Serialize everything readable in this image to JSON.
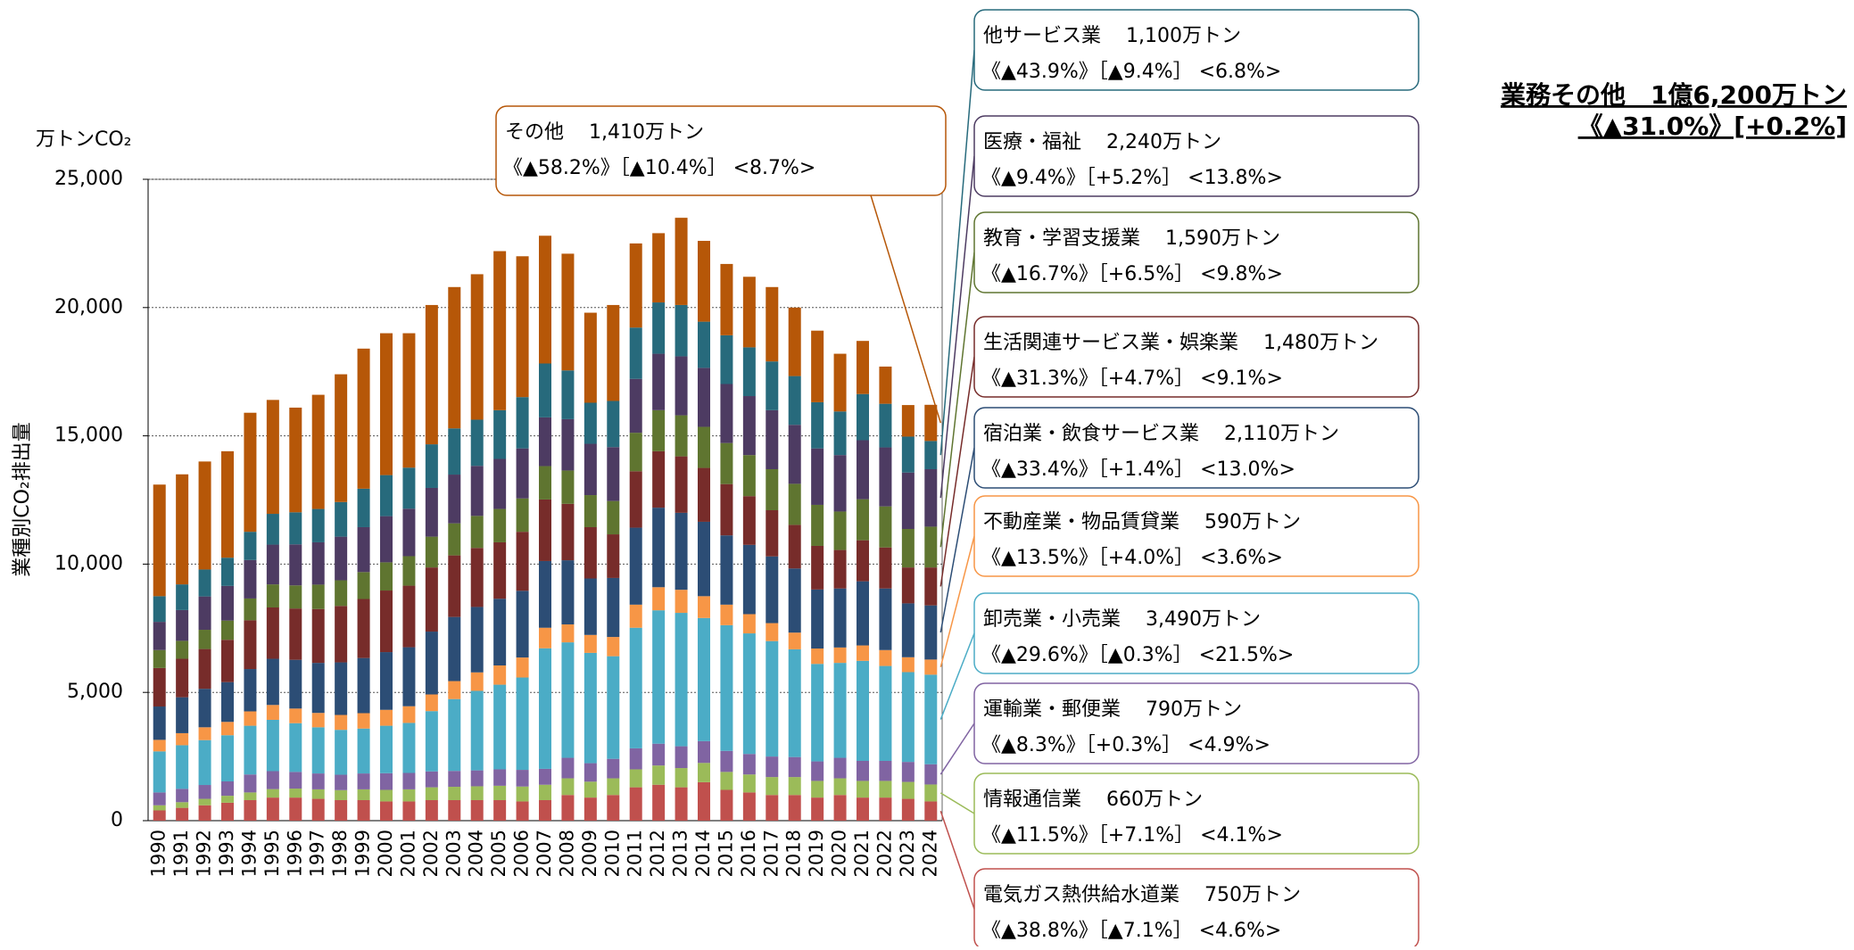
{
  "chart_data": {
    "type": "stacked_bar",
    "title": "業務その他　1億6,200万トン",
    "subtitle": "《▲31.0%》[+0.2%]",
    "y_unit": "万トンCO₂",
    "y_label": "業種別CO₂排出量",
    "categories": [
      "1990",
      "1991",
      "1992",
      "1993",
      "1994",
      "1995",
      "1996",
      "1997",
      "1998",
      "1999",
      "2000",
      "2001",
      "2002",
      "2003",
      "2004",
      "2005",
      "2006",
      "2007",
      "2008",
      "2009",
      "2010",
      "2011",
      "2012",
      "2013",
      "2014",
      "2015",
      "2016",
      "2017",
      "2018",
      "2019",
      "2020",
      "2021",
      "2022",
      "2023",
      "2024"
    ],
    "ylim": [
      0,
      25000
    ],
    "yticks": [
      0,
      {
        "value": 5000,
        "label": "5,000"
      },
      {
        "value": 10000,
        "label": "10,000"
      },
      {
        "value": 15000,
        "label": "15,000"
      },
      {
        "value": 20000,
        "label": "20,000"
      },
      {
        "value": 25000,
        "label": "25,000"
      }
    ],
    "grid": true,
    "series": [
      {
        "name": "電気ガス熱供給水道業",
        "amount": "750万トン",
        "change": "《▲38.8%》［▲7.1%］ <4.6%>",
        "color": "#c0504d",
        "values": [
          400,
          500,
          600,
          700,
          800,
          900,
          900,
          850,
          800,
          800,
          750,
          750,
          800,
          800,
          800,
          800,
          750,
          800,
          1000,
          900,
          1000,
          1300,
          1400,
          1300,
          1500,
          1200,
          1100,
          1000,
          1000,
          900,
          1000,
          900,
          900,
          850,
          750
        ]
      },
      {
        "name": "情報通信業",
        "amount": "660万トン",
        "change": "《▲11.5%》［+7.1%］ <4.1%>",
        "color": "#9bbb59",
        "values": [
          200,
          220,
          250,
          270,
          300,
          330,
          350,
          370,
          390,
          420,
          450,
          470,
          500,
          520,
          540,
          560,
          580,
          600,
          650,
          620,
          650,
          700,
          750,
          750,
          750,
          700,
          700,
          700,
          700,
          650,
          650,
          650,
          650,
          660,
          660
        ]
      },
      {
        "name": "運輸業・郵便業",
        "amount": "790万トン",
        "change": "《▲8.3%》［+0.3%］ <4.9%>",
        "color": "#8064a2",
        "values": [
          500,
          520,
          540,
          560,
          700,
          700,
          650,
          620,
          600,
          620,
          650,
          640,
          620,
          620,
          620,
          640,
          650,
          620,
          800,
          720,
          760,
          820,
          850,
          850,
          850,
          820,
          800,
          800,
          780,
          760,
          800,
          780,
          780,
          780,
          790
        ]
      },
      {
        "name": "卸売業・小売業",
        "amount": "3,490万トン",
        "change": "《▲29.6%》［▲0.3%］ <21.5%>",
        "color": "#4bacc6",
        "values": [
          1600,
          1700,
          1750,
          1800,
          1900,
          2000,
          1900,
          1800,
          1750,
          1750,
          1850,
          1950,
          2350,
          2800,
          3100,
          3300,
          3600,
          4700,
          4500,
          4300,
          4000,
          4700,
          5200,
          5200,
          4800,
          4900,
          4700,
          4500,
          4200,
          3800,
          3700,
          3900,
          3700,
          3500,
          3490
        ]
      },
      {
        "name": "不動産業・物品賃貸業",
        "amount": "590万トン",
        "change": "《▲13.5%》［+4.0%］ <3.6%>",
        "color": "#f79646",
        "values": [
          450,
          470,
          500,
          520,
          560,
          580,
          570,
          560,
          580,
          600,
          620,
          650,
          650,
          700,
          720,
          750,
          780,
          800,
          700,
          700,
          750,
          900,
          900,
          900,
          850,
          800,
          750,
          700,
          650,
          600,
          600,
          600,
          620,
          580,
          590
        ]
      },
      {
        "name": "宿泊業・飲食サービス業",
        "amount": "2,110万トン",
        "change": "《▲33.4%》［+1.4%］ <13.0%>",
        "color": "#2c4d75",
        "values": [
          1300,
          1400,
          1500,
          1550,
          1650,
          1800,
          1900,
          1950,
          2050,
          2150,
          2250,
          2300,
          2450,
          2500,
          2550,
          2600,
          2600,
          2600,
          2500,
          2200,
          2300,
          3000,
          3100,
          3000,
          2900,
          2700,
          2700,
          2600,
          2500,
          2300,
          2300,
          2500,
          2400,
          2100,
          2110
        ]
      },
      {
        "name": "生活関連サービス業・娯楽業",
        "amount": "1,480万トン",
        "change": "《▲31.3%》［+4.7%］ <9.1%>",
        "color": "#772c2a",
        "values": [
          1500,
          1500,
          1550,
          1650,
          1900,
          2000,
          2000,
          2100,
          2200,
          2300,
          2400,
          2400,
          2500,
          2400,
          2300,
          2200,
          2300,
          2400,
          2200,
          2000,
          1700,
          2200,
          2200,
          2200,
          2100,
          2000,
          1900,
          1800,
          1700,
          1700,
          1500,
          1600,
          1600,
          1400,
          1480
        ]
      },
      {
        "name": "教育・学習支援業",
        "amount": "1,590万トン",
        "change": "《▲16.7%》［+6.5%］ <9.8%>",
        "color": "#5f7530",
        "values": [
          700,
          700,
          750,
          750,
          850,
          900,
          900,
          950,
          1000,
          1050,
          1100,
          1150,
          1200,
          1250,
          1250,
          1300,
          1300,
          1300,
          1300,
          1250,
          1300,
          1500,
          1600,
          1600,
          1600,
          1600,
          1600,
          1600,
          1600,
          1600,
          1500,
          1600,
          1600,
          1500,
          1590
        ]
      },
      {
        "name": "医療・福祉",
        "amount": "2,240万トン",
        "change": "《▲9.4%》［+5.2%］ <13.8%>",
        "color": "#4d3b62",
        "values": [
          1100,
          1200,
          1300,
          1350,
          1500,
          1550,
          1600,
          1650,
          1700,
          1750,
          1800,
          1850,
          1900,
          1900,
          1950,
          1950,
          1950,
          1900,
          2000,
          2000,
          2100,
          2100,
          2200,
          2300,
          2300,
          2300,
          2300,
          2300,
          2300,
          2200,
          2200,
          2300,
          2300,
          2200,
          2240
        ]
      },
      {
        "name": "他サービス業",
        "amount": "1,100万トン",
        "change": "《▲43.9%》［▲9.4%］ <6.8%>",
        "color": "#276a7c",
        "values": [
          1000,
          1000,
          1050,
          1100,
          1100,
          1200,
          1250,
          1300,
          1350,
          1500,
          1600,
          1600,
          1700,
          1800,
          1800,
          1900,
          2000,
          2100,
          1900,
          1600,
          1800,
          2000,
          2000,
          2000,
          1800,
          1900,
          1900,
          1900,
          1900,
          1800,
          1700,
          1800,
          1700,
          1400,
          1100
        ]
      },
      {
        "name": "その他",
        "amount": "1,410万トン",
        "change": "《▲58.2%》［▲10.4%］ <8.7%>",
        "color": "#b65708",
        "values": [
          4350,
          4290,
          4210,
          4150,
          4640,
          4440,
          4080,
          4450,
          4980,
          5460,
          5530,
          5240,
          5430,
          5510,
          5670,
          6200,
          5490,
          4980,
          4550,
          3510,
          3740,
          3280,
          2700,
          3400,
          3150,
          2780,
          2750,
          2900,
          2670,
          2790,
          2250,
          2070,
          1450,
          1230,
          1410
        ]
      }
    ]
  }
}
